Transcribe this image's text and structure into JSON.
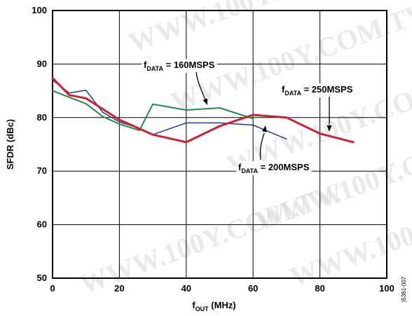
{
  "chart_data": {
    "type": "line",
    "xlabel": {
      "main": "f",
      "sub": "OUT",
      "rest": " (MHz)"
    },
    "ylabel": "SFDR (dBc)",
    "xlim": [
      0,
      100
    ],
    "ylim": [
      50,
      100
    ],
    "x_ticks": [
      "0",
      "20",
      "40",
      "60",
      "80",
      "100"
    ],
    "y_ticks": [
      "50",
      "60",
      "70",
      "80",
      "90",
      "100"
    ],
    "grid": true,
    "series": [
      {
        "name": "fDATA = 160MSPS",
        "label_main": "f",
        "label_sub": "DATA",
        "label_rest": " = 160MSPS",
        "color": "#1e8a4a",
        "width": 2,
        "x": [
          0,
          5,
          10,
          15,
          20,
          26,
          30,
          40,
          50,
          60
        ],
        "y": [
          85,
          83.8,
          82.6,
          80.2,
          78.8,
          77.6,
          82.5,
          81.4,
          81.8,
          79.8
        ]
      },
      {
        "name": "fDATA = 200MSPS",
        "label_main": "f",
        "label_sub": "DATA",
        "label_rest": " = 200MSPS",
        "color": "#1f3f8a",
        "width": 1.5,
        "x": [
          0,
          5,
          10,
          15,
          20,
          25,
          30,
          40,
          50,
          60,
          70
        ],
        "y": [
          87,
          84.6,
          85.1,
          81,
          79.2,
          78.2,
          76.8,
          79,
          79,
          78.6,
          76
        ],
        "annotation_label_text": "f_DATA = 200MSPS"
      },
      {
        "name": "fDATA = 250MSPS",
        "label_main": "f",
        "label_sub": "DATA",
        "label_rest": " = 250MSPS",
        "color": "#d01f2f",
        "width": 3,
        "x": [
          0,
          5,
          10,
          15,
          20,
          30,
          40,
          50,
          60,
          70,
          80,
          90
        ],
        "y": [
          87.4,
          84.2,
          83.6,
          81.6,
          79.6,
          76.8,
          75.4,
          78.4,
          80.5,
          80,
          77,
          75.4
        ]
      }
    ],
    "figure_id": ")5361-007",
    "watermark": "WWW.100Y.COM.TW"
  }
}
